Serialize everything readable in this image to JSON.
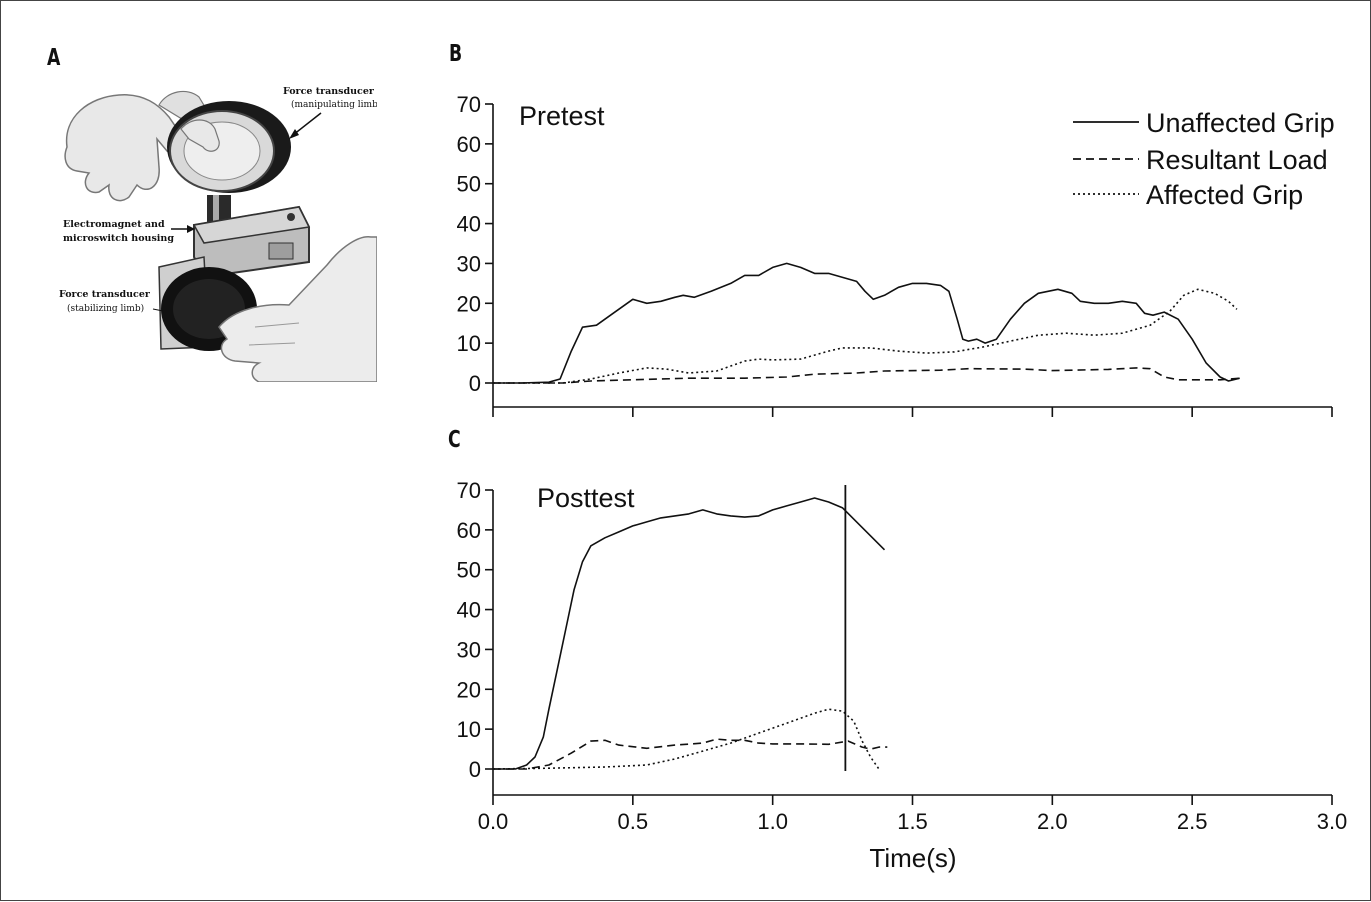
{
  "panels": {
    "a": "A",
    "b": "B",
    "c": "C"
  },
  "photo": {
    "label_top": "Force transducer",
    "label_top_sub": "(manipulating limb)",
    "label_mid_1": "Electromagnet and",
    "label_mid_2": "microswitch housing",
    "label_bottom": "Force transducer",
    "label_bottom_sub": "(stabilizing limb)"
  },
  "legend": {
    "unaffected": "Unaffected Grip",
    "resultant": "Resultant Load",
    "affected": "Affected Grip"
  },
  "colors": {
    "line": "#111111",
    "background": "#ffffff"
  },
  "chart_data": [
    {
      "type": "line",
      "title": "Pretest",
      "xlabel": "",
      "ylabel": "",
      "xlim": [
        0,
        3.0
      ],
      "ylim": [
        0,
        70
      ],
      "yticks": [
        "0",
        "10",
        "20",
        "30",
        "40",
        "50",
        "60",
        "70"
      ],
      "legend_position": "top-right",
      "grid": false,
      "series": [
        {
          "name": "Unaffected Grip",
          "style": "solid",
          "points": [
            [
              0,
              0
            ],
            [
              0.1,
              0
            ],
            [
              0.2,
              0.2
            ],
            [
              0.24,
              1
            ],
            [
              0.28,
              8
            ],
            [
              0.32,
              14
            ],
            [
              0.37,
              14.5
            ],
            [
              0.42,
              17
            ],
            [
              0.5,
              21
            ],
            [
              0.55,
              20
            ],
            [
              0.6,
              20.5
            ],
            [
              0.65,
              21.5
            ],
            [
              0.68,
              22
            ],
            [
              0.72,
              21.5
            ],
            [
              0.78,
              23
            ],
            [
              0.85,
              25
            ],
            [
              0.9,
              27
            ],
            [
              0.95,
              27
            ],
            [
              1.0,
              29
            ],
            [
              1.05,
              30
            ],
            [
              1.1,
              29
            ],
            [
              1.15,
              27.5
            ],
            [
              1.2,
              27.5
            ],
            [
              1.25,
              26.5
            ],
            [
              1.3,
              25.5
            ],
            [
              1.33,
              23
            ],
            [
              1.36,
              21
            ],
            [
              1.4,
              22
            ],
            [
              1.45,
              24
            ],
            [
              1.5,
              25
            ],
            [
              1.55,
              25
            ],
            [
              1.6,
              24.5
            ],
            [
              1.63,
              23
            ],
            [
              1.66,
              16
            ],
            [
              1.68,
              11
            ],
            [
              1.7,
              10.5
            ],
            [
              1.73,
              11
            ],
            [
              1.76,
              10
            ],
            [
              1.8,
              11
            ],
            [
              1.85,
              16
            ],
            [
              1.9,
              20
            ],
            [
              1.95,
              22.5
            ],
            [
              2.02,
              23.5
            ],
            [
              2.07,
              22.5
            ],
            [
              2.1,
              20.5
            ],
            [
              2.15,
              20
            ],
            [
              2.2,
              20
            ],
            [
              2.25,
              20.5
            ],
            [
              2.3,
              20
            ],
            [
              2.33,
              17.5
            ],
            [
              2.36,
              17
            ],
            [
              2.4,
              17.8
            ],
            [
              2.45,
              16
            ],
            [
              2.5,
              11
            ],
            [
              2.55,
              5
            ],
            [
              2.6,
              1.5
            ],
            [
              2.63,
              0.5
            ],
            [
              2.67,
              1.2
            ]
          ]
        },
        {
          "name": "Resultant Load",
          "style": "dashed",
          "points": [
            [
              0,
              0
            ],
            [
              0.25,
              0
            ],
            [
              0.35,
              0.5
            ],
            [
              0.5,
              0.8
            ],
            [
              0.7,
              1.2
            ],
            [
              0.9,
              1.2
            ],
            [
              1.05,
              1.5
            ],
            [
              1.15,
              2.2
            ],
            [
              1.3,
              2.5
            ],
            [
              1.4,
              3
            ],
            [
              1.6,
              3.2
            ],
            [
              1.7,
              3.6
            ],
            [
              1.9,
              3.5
            ],
            [
              2.0,
              3.1
            ],
            [
              2.2,
              3.4
            ],
            [
              2.3,
              3.8
            ],
            [
              2.35,
              3.6
            ],
            [
              2.4,
              1.5
            ],
            [
              2.45,
              0.8
            ],
            [
              2.6,
              0.8
            ],
            [
              2.67,
              1.2
            ]
          ]
        },
        {
          "name": "Affected Grip",
          "style": "dotted",
          "points": [
            [
              0,
              0
            ],
            [
              0.25,
              0
            ],
            [
              0.35,
              1
            ],
            [
              0.45,
              2.5
            ],
            [
              0.55,
              3.8
            ],
            [
              0.62,
              3.5
            ],
            [
              0.7,
              2.5
            ],
            [
              0.8,
              3
            ],
            [
              0.9,
              5.5
            ],
            [
              0.95,
              6
            ],
            [
              1.0,
              5.8
            ],
            [
              1.1,
              6
            ],
            [
              1.15,
              7
            ],
            [
              1.2,
              8
            ],
            [
              1.25,
              8.8
            ],
            [
              1.35,
              8.8
            ],
            [
              1.45,
              8
            ],
            [
              1.55,
              7.5
            ],
            [
              1.65,
              7.8
            ],
            [
              1.75,
              9
            ],
            [
              1.85,
              10.5
            ],
            [
              1.95,
              12
            ],
            [
              2.05,
              12.5
            ],
            [
              2.15,
              12
            ],
            [
              2.25,
              12.5
            ],
            [
              2.35,
              14.5
            ],
            [
              2.42,
              18
            ],
            [
              2.47,
              22
            ],
            [
              2.52,
              23.5
            ],
            [
              2.58,
              22.5
            ],
            [
              2.63,
              20.5
            ],
            [
              2.66,
              18.5
            ]
          ]
        }
      ]
    },
    {
      "type": "line",
      "title": "Posttest",
      "xlabel": "Time(s)",
      "ylabel": "",
      "xlim": [
        0,
        3.0
      ],
      "ylim": [
        0,
        70
      ],
      "xticks": [
        "0.0",
        "0.5",
        "1.0",
        "1.5",
        "2.0",
        "2.5",
        "3.0"
      ],
      "yticks": [
        "0",
        "10",
        "20",
        "30",
        "40",
        "50",
        "60",
        "70"
      ],
      "grid": false,
      "vline_x": 1.26,
      "series": [
        {
          "name": "Unaffected Grip",
          "style": "solid",
          "points": [
            [
              0,
              0
            ],
            [
              0.08,
              0
            ],
            [
              0.12,
              1
            ],
            [
              0.15,
              3
            ],
            [
              0.18,
              8
            ],
            [
              0.2,
              15
            ],
            [
              0.23,
              25
            ],
            [
              0.26,
              35
            ],
            [
              0.29,
              45
            ],
            [
              0.32,
              52
            ],
            [
              0.35,
              56
            ],
            [
              0.4,
              58
            ],
            [
              0.45,
              59.5
            ],
            [
              0.5,
              61
            ],
            [
              0.55,
              62
            ],
            [
              0.6,
              63
            ],
            [
              0.65,
              63.5
            ],
            [
              0.7,
              64
            ],
            [
              0.75,
              65
            ],
            [
              0.8,
              64
            ],
            [
              0.85,
              63.5
            ],
            [
              0.9,
              63.2
            ],
            [
              0.95,
              63.5
            ],
            [
              1.0,
              65
            ],
            [
              1.05,
              66
            ],
            [
              1.1,
              67
            ],
            [
              1.15,
              68
            ],
            [
              1.2,
              67
            ],
            [
              1.25,
              65.5
            ],
            [
              1.3,
              62
            ],
            [
              1.35,
              58.5
            ],
            [
              1.4,
              55
            ]
          ]
        },
        {
          "name": "Resultant Load",
          "style": "dashed",
          "points": [
            [
              0,
              0
            ],
            [
              0.12,
              0
            ],
            [
              0.2,
              1
            ],
            [
              0.28,
              4
            ],
            [
              0.35,
              7
            ],
            [
              0.4,
              7.2
            ],
            [
              0.45,
              6
            ],
            [
              0.55,
              5.2
            ],
            [
              0.65,
              6
            ],
            [
              0.75,
              6.5
            ],
            [
              0.8,
              7.5
            ],
            [
              0.85,
              7.2
            ],
            [
              0.9,
              7.2
            ],
            [
              0.95,
              6.5
            ],
            [
              1.0,
              6.3
            ],
            [
              1.1,
              6.3
            ],
            [
              1.2,
              6.2
            ],
            [
              1.27,
              7
            ],
            [
              1.32,
              5.5
            ],
            [
              1.35,
              5
            ],
            [
              1.38,
              5.5
            ],
            [
              1.41,
              5.5
            ]
          ]
        },
        {
          "name": "Affected Grip",
          "style": "dotted",
          "points": [
            [
              0,
              0
            ],
            [
              0.2,
              0.2
            ],
            [
              0.4,
              0.5
            ],
            [
              0.55,
              1
            ],
            [
              0.65,
              2.5
            ],
            [
              0.75,
              4.5
            ],
            [
              0.85,
              6.5
            ],
            [
              0.95,
              9
            ],
            [
              1.05,
              11.5
            ],
            [
              1.15,
              14
            ],
            [
              1.2,
              15
            ],
            [
              1.25,
              14.5
            ],
            [
              1.29,
              12
            ],
            [
              1.32,
              7
            ],
            [
              1.35,
              3
            ],
            [
              1.38,
              0
            ]
          ]
        }
      ]
    }
  ]
}
